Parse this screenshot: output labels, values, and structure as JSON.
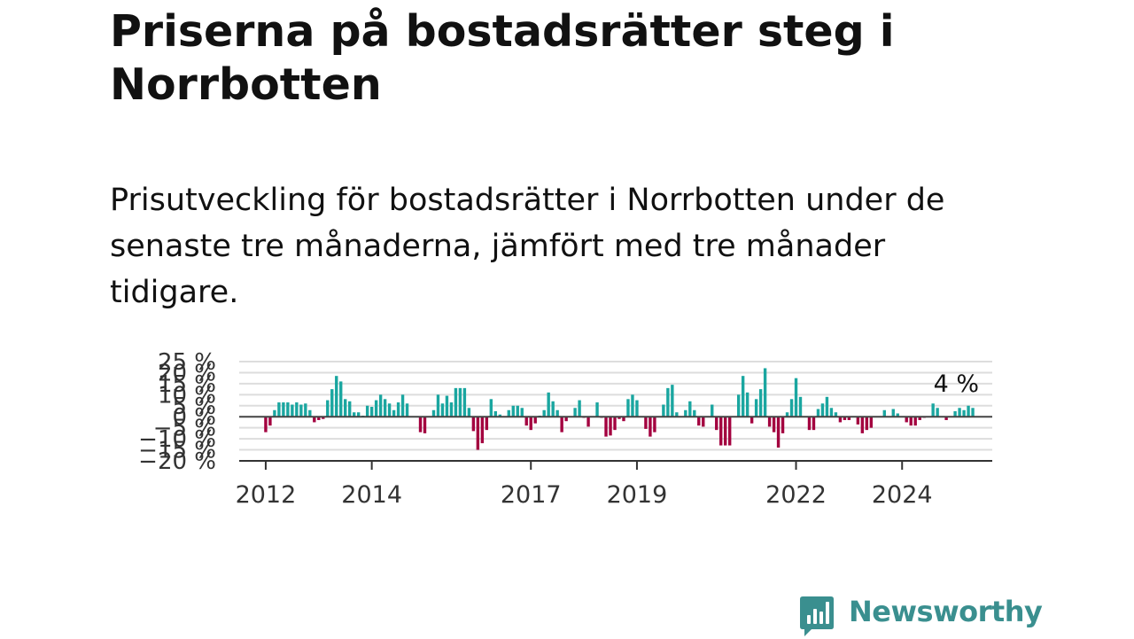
{
  "title": "Priserna på bostadsrätter steg i Norrbotten",
  "subtitle": "Prisutveckling för bostadsrätter i Norrbotten under de senaste tre månaderna, jämfört med tre månader tidigare.",
  "brand": {
    "name": "Newsworthy",
    "color": "#3a8f8f"
  },
  "chart_data": {
    "type": "bar",
    "title": "",
    "xlabel": "",
    "ylabel": "",
    "ylim": [
      -20,
      25
    ],
    "xlim": [
      2011.5,
      2025.7
    ],
    "y_ticks": [
      {
        "value": 25,
        "label": "25 %"
      },
      {
        "value": 20,
        "label": "20 %"
      },
      {
        "value": 15,
        "label": "15 %"
      },
      {
        "value": 10,
        "label": "10 %"
      },
      {
        "value": 5,
        "label": "5 %"
      },
      {
        "value": 0,
        "label": "0 %"
      },
      {
        "value": -5,
        "label": "−5 %"
      },
      {
        "value": -10,
        "label": "−10 %"
      },
      {
        "value": -15,
        "label": "−15 %"
      },
      {
        "value": -20,
        "label": "−20 %"
      }
    ],
    "x_ticks": [
      {
        "value": 2012,
        "label": "2012"
      },
      {
        "value": 2014,
        "label": "2014"
      },
      {
        "value": 2017,
        "label": "2017"
      },
      {
        "value": 2019,
        "label": "2019"
      },
      {
        "value": 2022,
        "label": "2022"
      },
      {
        "value": 2024,
        "label": "2024"
      }
    ],
    "grid": true,
    "colors": {
      "positive": "#1aa6a0",
      "negative": "#a3003f",
      "grid": "#dddddd",
      "zero": "#444444"
    },
    "start": "2012-01",
    "series": [
      {
        "values": [
          -7,
          -4,
          3,
          6.5,
          6.5,
          6.5,
          5.5,
          6.5,
          5.5,
          6,
          3,
          -2.5,
          -1.5,
          -1,
          7.5,
          12.5,
          18.5,
          16,
          8,
          7,
          2,
          2,
          0.5,
          5,
          4.5,
          7.5,
          10,
          8,
          6,
          3,
          6.5,
          10,
          6,
          0,
          0,
          -7,
          -7.5,
          0,
          3,
          10,
          6,
          9.5,
          6.5,
          13,
          13,
          13,
          4,
          -6.5,
          -15,
          -12,
          -6,
          8,
          2.5,
          1,
          0,
          3,
          5,
          5,
          4,
          -4,
          -6,
          -3,
          0.5,
          3,
          11,
          7,
          3,
          -7,
          -2,
          0,
          4,
          7.5,
          -0.5,
          -4.5,
          0,
          6.5,
          -0.5,
          -9,
          -8.5,
          -6,
          -1,
          -2,
          8,
          10,
          7.5,
          0,
          -5.5,
          -9,
          -7,
          0,
          5.5,
          13,
          14.5,
          2,
          0,
          3,
          7,
          3,
          -4,
          -4.5,
          0,
          5.5,
          -6,
          -13,
          -13,
          -13,
          0,
          10,
          18.5,
          11,
          -3,
          8,
          12.5,
          22,
          -4.5,
          -7,
          -14,
          -7.5,
          2,
          8,
          17.5,
          9,
          0,
          -6,
          -6,
          3.5,
          6,
          9,
          4,
          2,
          -2.5,
          -1.5,
          -1.5,
          0,
          -3.5,
          -7.5,
          -6,
          -5,
          0,
          0,
          3,
          0,
          3.5,
          1.5,
          0,
          -2.5,
          -4,
          -4,
          -1.5,
          -0.5,
          0,
          6,
          4,
          0,
          -1.5,
          0,
          2.5,
          4,
          3,
          5,
          4
        ]
      }
    ],
    "annotation": {
      "label": "4 %"
    }
  }
}
